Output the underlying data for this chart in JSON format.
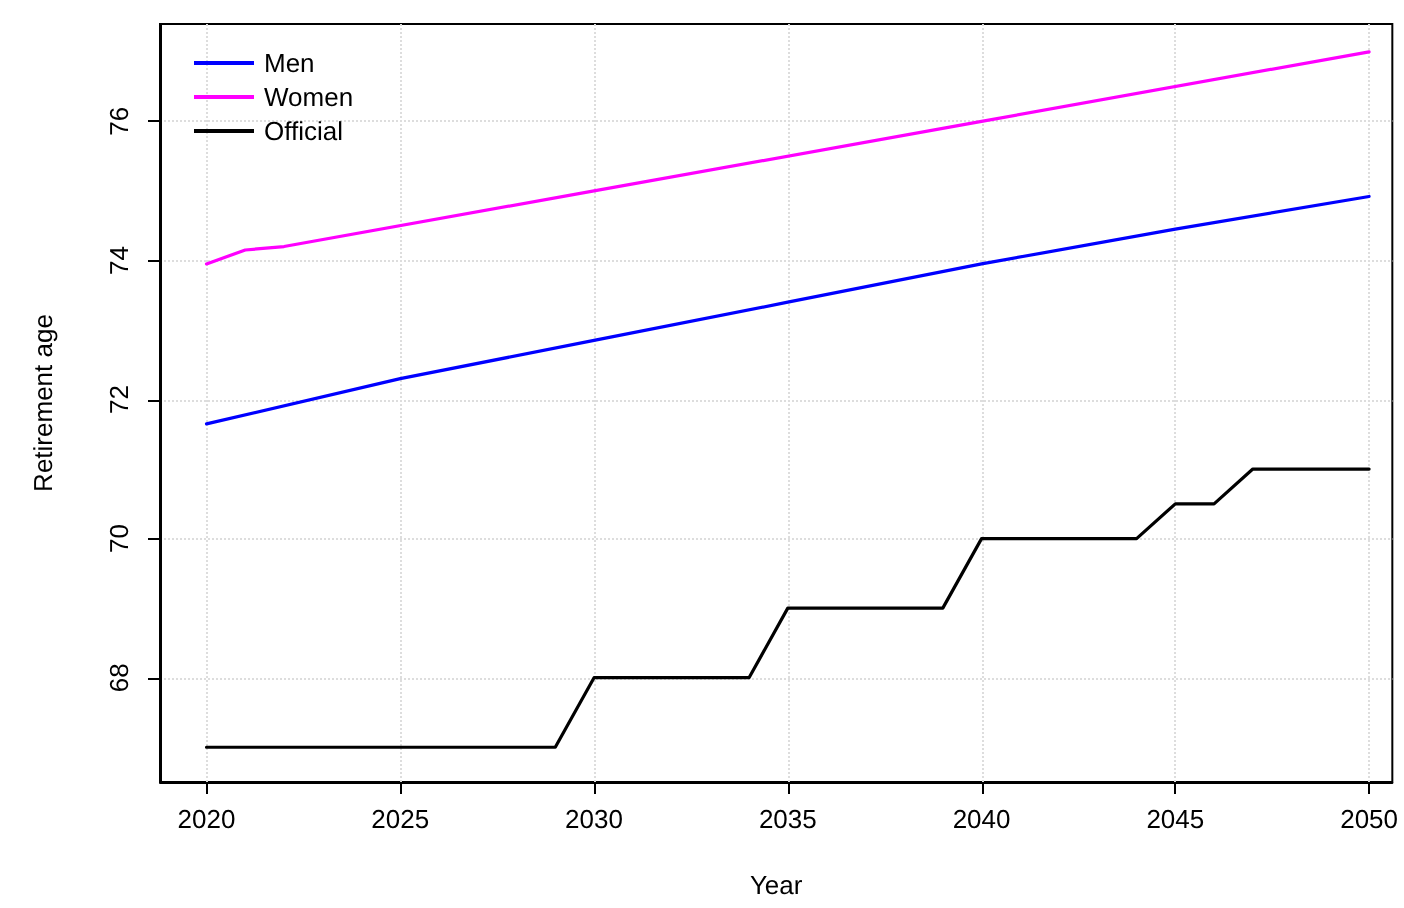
{
  "chart_data": {
    "type": "line",
    "xlabel": "Year",
    "ylabel": "Retirement age",
    "xlim": [
      2018.8,
      2050.6
    ],
    "ylim": [
      66.5,
      77.4
    ],
    "xticks": [
      2020,
      2025,
      2030,
      2035,
      2040,
      2045,
      2050
    ],
    "yticks": [
      68,
      70,
      72,
      74,
      76
    ],
    "grid": true,
    "legend": "top left",
    "marker": "none",
    "line_style": "solid",
    "series": [
      {
        "name": "Men",
        "color": "#0000ff",
        "x": [
          2020,
          2025,
          2030,
          2035,
          2040,
          2045,
          2050
        ],
        "values": [
          71.65,
          72.3,
          72.85,
          73.4,
          73.95,
          74.45,
          74.92
        ]
      },
      {
        "name": "Women",
        "color": "#ff00ff",
        "x": [
          2020,
          2021,
          2022,
          2030,
          2040,
          2050
        ],
        "values": [
          73.95,
          74.15,
          74.2,
          75.0,
          76.0,
          77.0
        ]
      },
      {
        "name": "Official",
        "color": "#000000",
        "x": [
          2020,
          2029,
          2030,
          2034,
          2035,
          2039,
          2040,
          2044,
          2045,
          2046,
          2047,
          2050
        ],
        "values": [
          67,
          67,
          68,
          68,
          69,
          69,
          70,
          70,
          70.5,
          70.5,
          71,
          71
        ]
      }
    ]
  }
}
